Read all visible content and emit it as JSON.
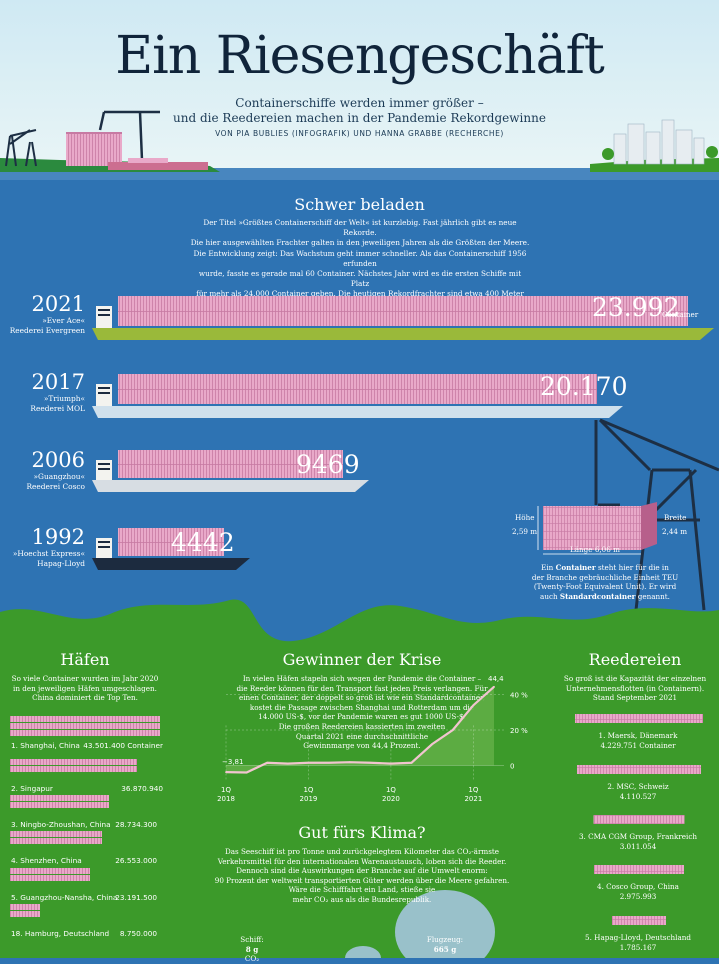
{
  "header": {
    "title": "Ein Riesengeschäft",
    "subtitle_line1": "Containerschiffe werden immer größer –",
    "subtitle_line2": "und die Reedereien machen in der Pandemie Rekordgewinne",
    "byline": "VON PIA BUBLIES (INFOGRAFIK) UND HANNA GRABBE (RECHERCHE)"
  },
  "ships_section": {
    "heading": "Schwer beladen",
    "intro": [
      "Der Titel »Größtes Containerschiff der Welt« ist kurzlebig. Fast jährlich gibt es neue Rekorde.",
      "Die hier ausgewählten Frachter galten in den jeweiligen Jahren als die Größten der Meere.",
      "Die Entwicklung zeigt: Das Wachstum geht immer schneller. Als das Containerschiff 1956 erfunden",
      "wurde, fasste es gerade mal 60 Container. Nächstes Jahr wird es die ersten Schiffe mit Platz",
      "für mehr als 24.000 Container geben. Die heutigen Rekordfrachter sind etwa 400 Meter lang."
    ],
    "ships": [
      {
        "year": "2021",
        "name": "»Ever Ace«",
        "owner": "Reederei Evergreen",
        "capacity": "23.992",
        "unit": "Container",
        "value": 23992,
        "hull": "#9ab93a"
      },
      {
        "year": "2017",
        "name": "»Triumph«",
        "owner": "Reederei MOL",
        "capacity": "20.170",
        "unit": "",
        "value": 20170,
        "hull": "#cfe0ec"
      },
      {
        "year": "2006",
        "name": "»Guangzhou«",
        "owner": "Reederei Cosco",
        "capacity": "9469",
        "unit": "",
        "value": 9469,
        "hull": "#d7dde3"
      },
      {
        "year": "1992",
        "name": "»Hoechst Express«",
        "owner": "Hapag-Lloyd",
        "capacity": "4442",
        "unit": "",
        "value": 4442,
        "hull": "#1c2b3f"
      }
    ],
    "container": {
      "hoehe_label": "Höhe",
      "hoehe_val": "2,59 m",
      "breite_label": "Breite",
      "breite_val": "2,44 m",
      "laenge": "Länge 6,06 m",
      "caption_1": "Ein ",
      "caption_bold1": "Container",
      "caption_2": " steht hier für die in",
      "caption_3": "der Branche gebräuchliche Einheit TEU",
      "caption_4": "(Twenty-Foot Equivalent Unit). Er wird",
      "caption_5": "auch ",
      "caption_bold2": "Standardcontainer",
      "caption_6": " genannt."
    }
  },
  "ports": {
    "heading": "Häfen",
    "intro": [
      "So viele Container wurden im Jahr 2020",
      "in den jeweiligen Häfen umgeschlagen.",
      "China dominiert die Top Ten."
    ],
    "rows": [
      {
        "name": "1. Shanghai, China",
        "value": "43.501.400 Container",
        "num": 43501400
      },
      {
        "name": "2. Singapur",
        "value": "36.870.940",
        "num": 36870940
      },
      {
        "name": "3. Ningbo-Zhoushan, China",
        "value": "28.734.300",
        "num": 28734300
      },
      {
        "name": "4. Shenzhen, China",
        "value": "26.553.000",
        "num": 26553000
      },
      {
        "name": "5. Guangzhou-Nansha, China",
        "value": "23.191.500",
        "num": 23191500
      },
      {
        "name": "18. Hamburg, Deutschland",
        "value": "8.750.000",
        "num": 8750000
      }
    ]
  },
  "crisis": {
    "heading": "Gewinner der Krise",
    "text": [
      "In vielen Häfen stapeln sich wegen der Pandemie die Container –",
      "die Reeder können für den Transport fast jeden Preis verlangen. Für",
      "einen Container, der doppelt so groß ist wie ein Standardcontainer,",
      "kostet die Passage zwischen Shanghai und Rotterdam um die",
      "14.000 US-$, vor der Pandemie waren es gut 1000 US-$.",
      "Die großen Reedereien kassierten im zweiten",
      "Quartal 2021 eine durchschnittliche",
      "Gewinnmarge von 44,4 Prozent."
    ]
  },
  "chart_data": {
    "type": "line",
    "x": [
      "1Q 2018",
      "2Q 2018",
      "3Q 2018",
      "4Q 2018",
      "1Q 2019",
      "2Q 2019",
      "3Q 2019",
      "4Q 2019",
      "1Q 2020",
      "2Q 2020",
      "3Q 2020",
      "4Q 2020",
      "1Q 2021",
      "2Q 2021"
    ],
    "values": [
      -3.81,
      -4,
      1.5,
      1,
      1.5,
      1.5,
      1.8,
      1.5,
      1,
      1.5,
      12,
      20,
      34,
      44.4
    ],
    "x_ticks": [
      {
        "label_q": "1Q",
        "label_y": "2018",
        "index": 0
      },
      {
        "label_q": "1Q",
        "label_y": "2019",
        "index": 4
      },
      {
        "label_q": "1Q",
        "label_y": "2020",
        "index": 8
      },
      {
        "label_q": "1Q",
        "label_y": "2021",
        "index": 12
      }
    ],
    "y_ticks": [
      "40 %",
      "20 %",
      "0"
    ],
    "ylim": [
      -6,
      46
    ],
    "start_label": "−3,81",
    "end_label": "44,4",
    "line_color": "#f1c5cf"
  },
  "climate": {
    "heading": "Gut fürs Klima?",
    "text": [
      "Das Seeschiff ist pro Tonne und zurückgelegtem Kilometer das CO₂-ärmste",
      "Verkehrsmittel für den internationalen Warenaustausch, loben sich die Reeder.",
      "Dennoch sind die Auswirkungen der Branche auf die Umwelt enorm:",
      "90 Prozent der weltweit transportierten Güter werden über die Meere gefahren.",
      "Wäre die Schifffahrt ein Land, stieße sie",
      "mehr CO₂ aus als die Bundesrepublik."
    ],
    "ship_label": "Schiff:",
    "ship_value": "8 g",
    "ship_unit": "CO₂",
    "plane_label": "Flugzeug:",
    "plane_value": "665 g"
  },
  "carriers": {
    "heading": "Reedereien",
    "intro": [
      "So groß ist die Kapazität der einzelnen",
      "Unternehmensflotten (in Containern).",
      "Stand September 2021"
    ],
    "rows": [
      {
        "name": "1. Maersk, Dänemark",
        "value": "4.229.751 Container",
        "num": 4229751
      },
      {
        "name": "2. MSC, Schweiz",
        "value": "4.110.527",
        "num": 4110527
      },
      {
        "name": "3. CMA CGM Group, Frankreich",
        "value": "3.011.054",
        "num": 3011054
      },
      {
        "name": "4. Cosco Group, China",
        "value": "2.975.993",
        "num": 2975993
      },
      {
        "name": "5. Hapag-Lloyd, Deutschland",
        "value": "1.785.167",
        "num": 1785167
      }
    ]
  },
  "colors": {
    "sea": "#2e73b3",
    "sky": "#d8eef6",
    "land": "#3c9a2a",
    "container": "#e9a9c9",
    "dark": "#10243a"
  }
}
